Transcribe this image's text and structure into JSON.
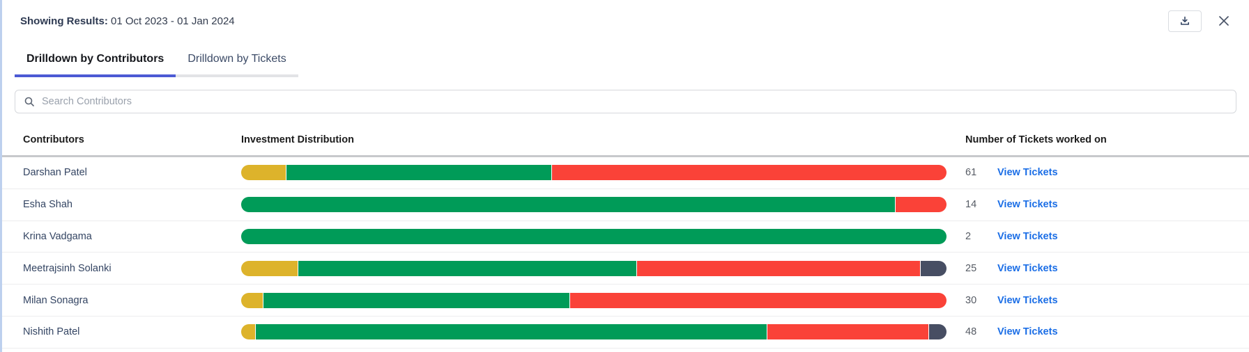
{
  "header": {
    "label": "Showing Results:",
    "date_range": "01 Oct 2023 - 01 Jan 2024"
  },
  "actions": {
    "download_icon": "download-tray-icon",
    "close_icon": "close-x-icon"
  },
  "tabs": [
    {
      "label": "Drilldown by Contributors",
      "active": true
    },
    {
      "label": "Drilldown by Tickets",
      "active": false
    }
  ],
  "search": {
    "placeholder": "Search Contributors",
    "icon": "search-icon"
  },
  "table": {
    "columns": [
      "Contributors",
      "Investment Distribution",
      "Number of Tickets worked on"
    ],
    "view_tickets_label": "View Tickets",
    "rows": [
      {
        "name": "Darshan Patel",
        "tickets": "61",
        "segments": [
          {
            "color": "yellow",
            "pct": 6.3
          },
          {
            "color": "green",
            "pct": 37.7
          },
          {
            "color": "red",
            "pct": 56.0
          }
        ]
      },
      {
        "name": "Esha Shah",
        "tickets": "14",
        "segments": [
          {
            "color": "green",
            "pct": 92.7
          },
          {
            "color": "red",
            "pct": 7.3
          }
        ]
      },
      {
        "name": "Krina Vadgama",
        "tickets": "2",
        "segments": [
          {
            "color": "green",
            "pct": 100
          }
        ]
      },
      {
        "name": "Meetrajsinh Solanki",
        "tickets": "25",
        "segments": [
          {
            "color": "yellow",
            "pct": 8.0
          },
          {
            "color": "green",
            "pct": 48.0
          },
          {
            "color": "red",
            "pct": 40.2
          },
          {
            "color": "dark",
            "pct": 3.8
          }
        ]
      },
      {
        "name": "Milan Sonagra",
        "tickets": "30",
        "segments": [
          {
            "color": "yellow",
            "pct": 3.1
          },
          {
            "color": "green",
            "pct": 43.4
          },
          {
            "color": "red",
            "pct": 53.5
          }
        ]
      },
      {
        "name": "Nishith Patel",
        "tickets": "48",
        "segments": [
          {
            "color": "yellow",
            "pct": 2.0
          },
          {
            "color": "green",
            "pct": 72.5
          },
          {
            "color": "red",
            "pct": 22.9
          },
          {
            "color": "dark",
            "pct": 2.6
          }
        ]
      }
    ]
  },
  "colors": {
    "segments": {
      "yellow": "#DDB32B",
      "green": "#009B58",
      "red": "#FA4238",
      "dark": "#474E63"
    },
    "active_tab_underline": "#4C5AD4",
    "link_blue": "#1B6EE6"
  }
}
